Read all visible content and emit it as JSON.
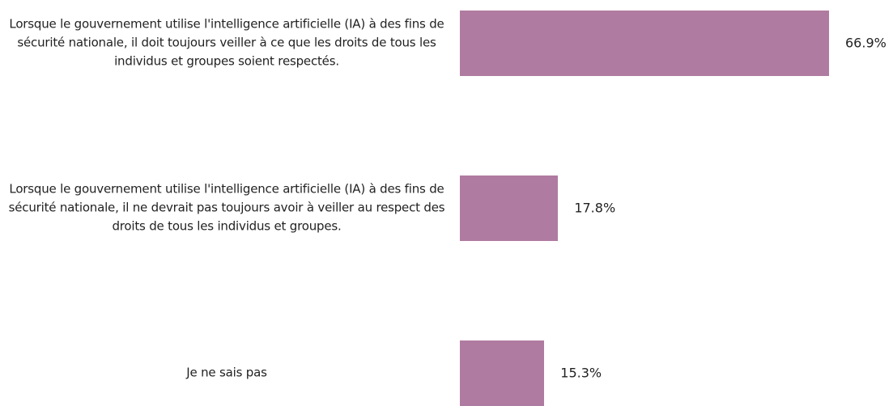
{
  "chart_data": {
    "type": "bar",
    "orientation": "horizontal",
    "categories": [
      "Lorsque le gouvernement utilise l'intelligence artificielle (IA) à des fins de sécurité nationale, il doit toujours veiller à ce que les droits de tous les individus et groupes soient respectés.",
      "Lorsque le gouvernement utilise l'intelligence artificielle (IA) à des fins de sécurité nationale, il ne devrait pas toujours avoir à veiller au respect des droits de tous les individus et groupes.",
      "Je ne sais pas"
    ],
    "values": [
      66.9,
      17.8,
      15.3
    ],
    "value_labels": [
      "66.9%",
      "17.8%",
      "15.3%"
    ],
    "color": "#b07ba0"
  }
}
